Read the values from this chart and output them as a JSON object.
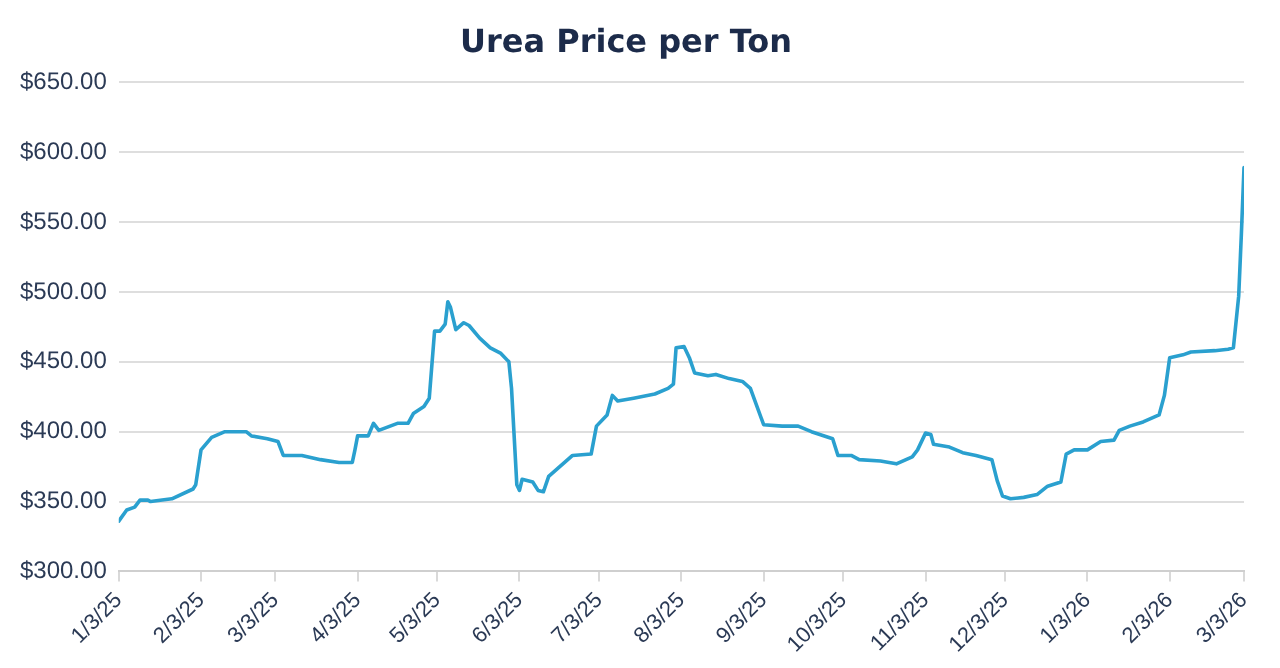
{
  "chart_data": {
    "type": "line",
    "title": "Urea Price per Ton",
    "x": [
      "2025-01-03",
      "2025-01-06",
      "2025-01-09",
      "2025-01-11",
      "2025-01-14",
      "2025-01-15",
      "2025-01-23",
      "2025-01-31",
      "2025-02-01",
      "2025-02-03",
      "2025-02-07",
      "2025-02-12",
      "2025-02-20",
      "2025-02-22",
      "2025-02-28",
      "2025-03-04",
      "2025-03-06",
      "2025-03-13",
      "2025-03-20",
      "2025-03-27",
      "2025-04-01",
      "2025-04-02",
      "2025-04-03",
      "2025-04-07",
      "2025-04-09",
      "2025-04-11",
      "2025-04-18",
      "2025-04-22",
      "2025-04-24",
      "2025-04-28",
      "2025-04-30",
      "2025-05-02",
      "2025-05-04",
      "2025-05-06",
      "2025-05-07",
      "2025-05-08",
      "2025-05-10",
      "2025-05-13",
      "2025-05-15",
      "2025-05-19",
      "2025-05-23",
      "2025-05-27",
      "2025-05-30",
      "2025-05-31",
      "2025-06-02",
      "2025-06-03",
      "2025-06-04",
      "2025-06-08",
      "2025-06-10",
      "2025-06-12",
      "2025-06-14",
      "2025-06-17",
      "2025-06-23",
      "2025-06-30",
      "2025-07-02",
      "2025-07-06",
      "2025-07-08",
      "2025-07-10",
      "2025-07-16",
      "2025-07-24",
      "2025-07-29",
      "2025-07-31",
      "2025-08-01",
      "2025-08-04",
      "2025-08-06",
      "2025-08-08",
      "2025-08-13",
      "2025-08-16",
      "2025-08-21",
      "2025-08-26",
      "2025-08-29",
      "2025-09-03",
      "2025-09-10",
      "2025-09-16",
      "2025-09-21",
      "2025-09-29",
      "2025-10-01",
      "2025-10-06",
      "2025-10-09",
      "2025-10-17",
      "2025-10-23",
      "2025-10-29",
      "2025-10-31",
      "2025-11-03",
      "2025-11-05",
      "2025-11-06",
      "2025-11-12",
      "2025-11-17",
      "2025-11-22",
      "2025-11-28",
      "2025-11-30",
      "2025-12-02",
      "2025-12-05",
      "2025-12-10",
      "2025-12-15",
      "2025-12-19",
      "2025-12-24",
      "2025-12-26",
      "2025-12-29",
      "2026-01-03",
      "2026-01-08",
      "2026-01-13",
      "2026-01-15",
      "2026-01-19",
      "2026-01-24",
      "2026-01-30",
      "2026-02-01",
      "2026-02-03",
      "2026-02-08",
      "2026-02-11",
      "2026-02-20",
      "2026-02-25",
      "2026-02-27",
      "2026-03-01",
      "2026-03-02",
      "2026-03-03"
    ],
    "series": [
      {
        "color": "#2aa0cf",
        "values": [
          336,
          344,
          346,
          351,
          351,
          350,
          352,
          359,
          362,
          387,
          396,
          400,
          400,
          397,
          395,
          393,
          383,
          383,
          380,
          378,
          378,
          387,
          397,
          397,
          406,
          401,
          406,
          406,
          413,
          418,
          424,
          472,
          472,
          477,
          493,
          489,
          473,
          478,
          476,
          467,
          460,
          456,
          450,
          431,
          362,
          358,
          366,
          364,
          358,
          357,
          368,
          373,
          383,
          384,
          404,
          412,
          426,
          422,
          424,
          427,
          431,
          434,
          460,
          461,
          453,
          442,
          440,
          441,
          438,
          436,
          431,
          405,
          404,
          404,
          400,
          395,
          383,
          383,
          380,
          379,
          377,
          382,
          387,
          399,
          398,
          391,
          389,
          385,
          383,
          380,
          365,
          354,
          352,
          353,
          355,
          361,
          364,
          384,
          387,
          387,
          393,
          394,
          401,
          404,
          407,
          412,
          426,
          453,
          455,
          457,
          458,
          459,
          460,
          497,
          541,
          589
        ]
      }
    ],
    "xlim": [
      "2025-01-03",
      "2026-03-03"
    ],
    "xticks": [
      {
        "value": "2025-01-03",
        "label": "1/3/25"
      },
      {
        "value": "2025-02-03",
        "label": "2/3/25"
      },
      {
        "value": "2025-03-03",
        "label": "3/3/25"
      },
      {
        "value": "2025-04-03",
        "label": "4/3/25"
      },
      {
        "value": "2025-05-03",
        "label": "5/3/25"
      },
      {
        "value": "2025-06-03",
        "label": "6/3/25"
      },
      {
        "value": "2025-07-03",
        "label": "7/3/25"
      },
      {
        "value": "2025-08-03",
        "label": "8/3/25"
      },
      {
        "value": "2025-09-03",
        "label": "9/3/25"
      },
      {
        "value": "2025-10-03",
        "label": "10/3/25"
      },
      {
        "value": "2025-11-03",
        "label": "11/3/25"
      },
      {
        "value": "2025-12-03",
        "label": "12/3/25"
      },
      {
        "value": "2026-01-03",
        "label": "1/3/26"
      },
      {
        "value": "2026-02-03",
        "label": "2/3/26"
      },
      {
        "value": "2026-03-03",
        "label": "3/3/26"
      }
    ],
    "ylim": [
      300,
      650
    ],
    "yticks": [
      {
        "value": 300,
        "label": "$300.00"
      },
      {
        "value": 350,
        "label": "$350.00"
      },
      {
        "value": 400,
        "label": "$400.00"
      },
      {
        "value": 450,
        "label": "$450.00"
      },
      {
        "value": 500,
        "label": "$500.00"
      },
      {
        "value": 550,
        "label": "$550.00"
      },
      {
        "value": 600,
        "label": "$600.00"
      },
      {
        "value": 650,
        "label": "$650.00"
      }
    ],
    "grid": "y",
    "legend": false,
    "marker": "none",
    "line_style": "solid"
  }
}
